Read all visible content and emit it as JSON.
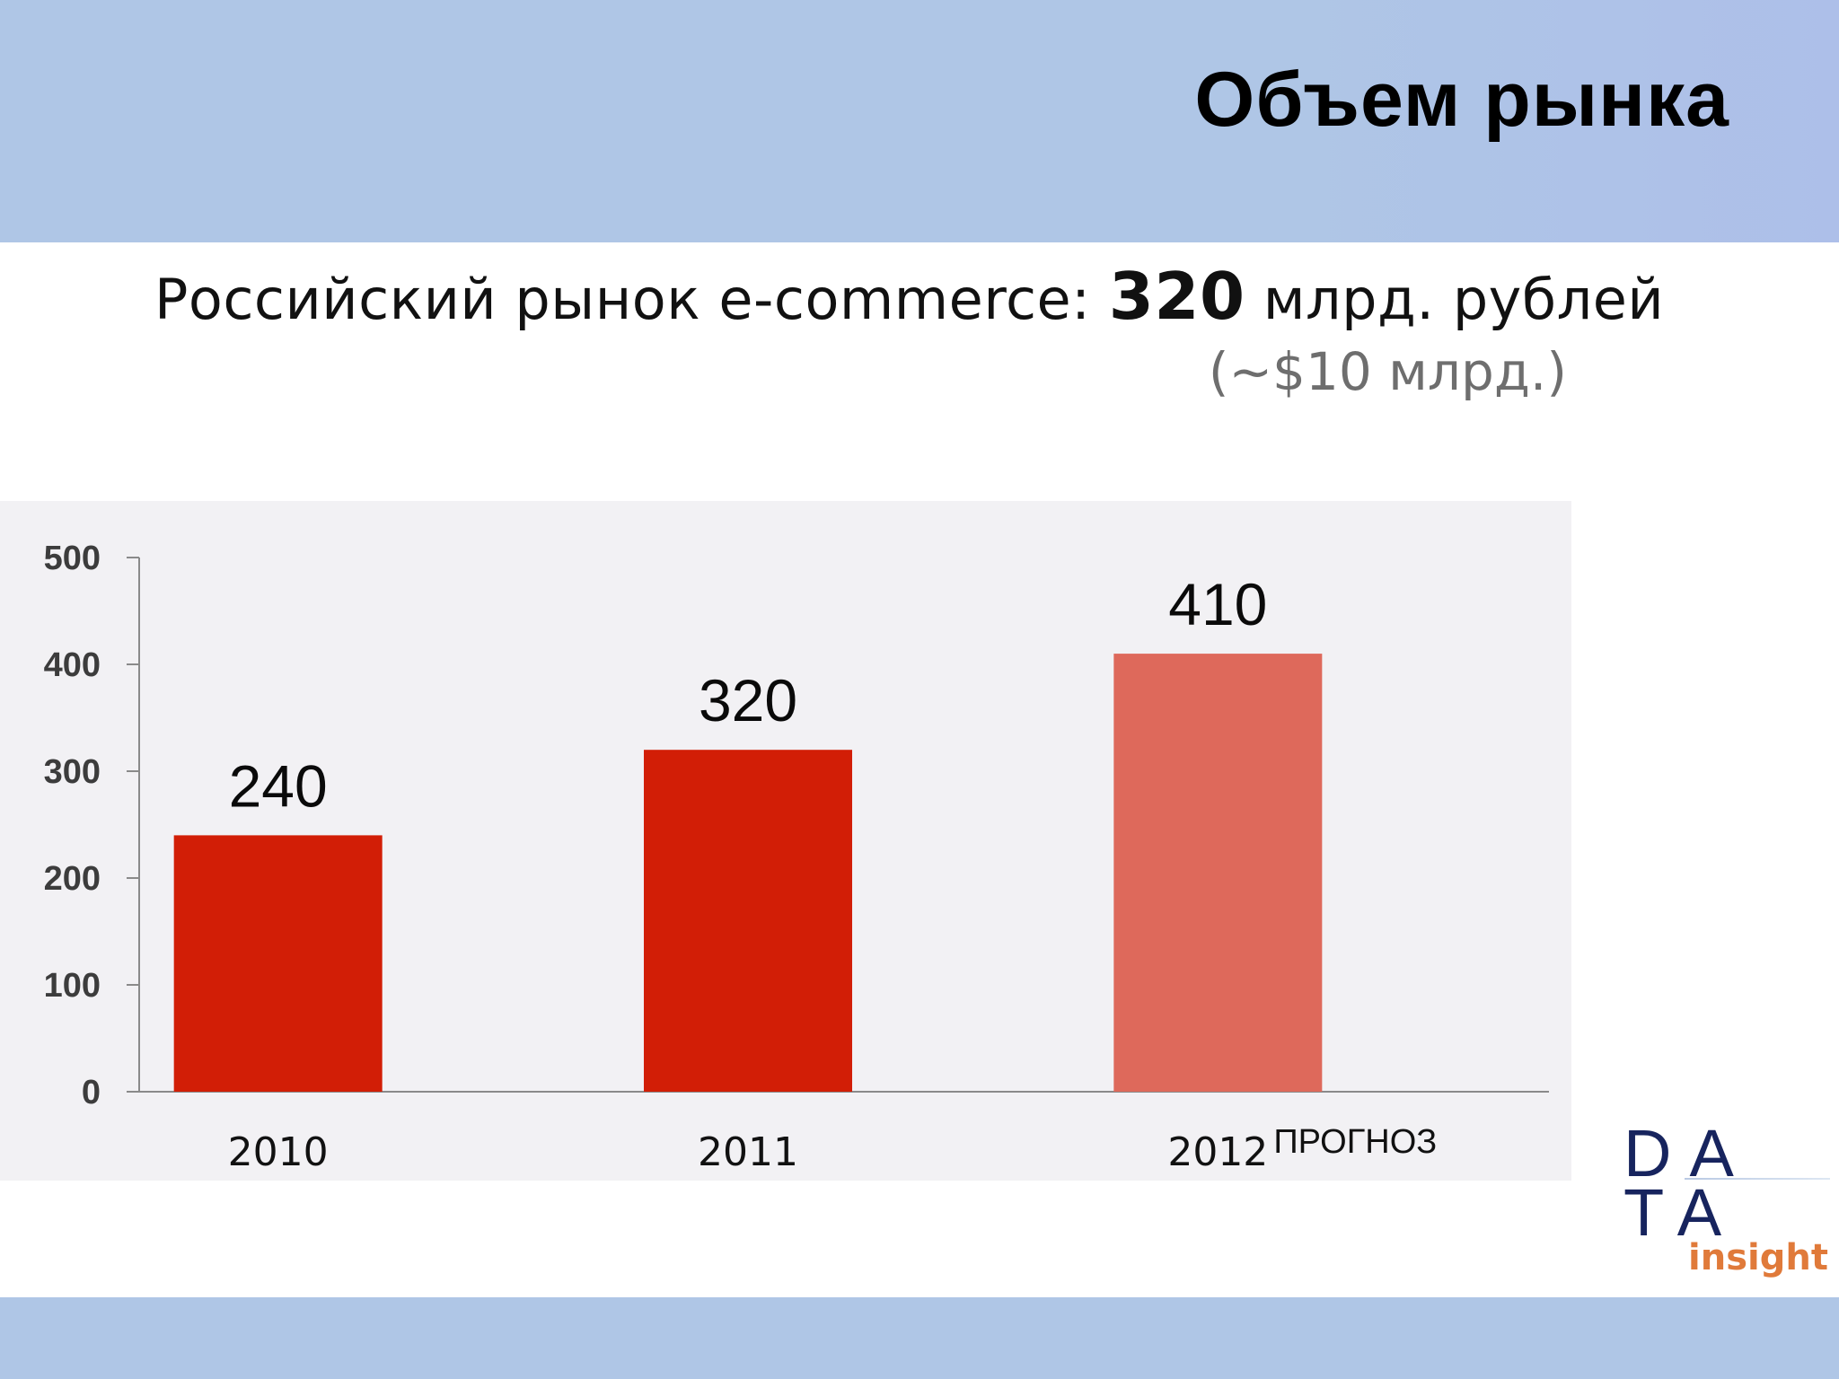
{
  "header": {
    "title": "Объем рынка"
  },
  "headline": {
    "prefix": "Российский рынок e-commerce: ",
    "value": "320",
    "suffix": " млрд. рублей",
    "subline": "(~$10 млрд.)"
  },
  "logo": {
    "line1": "DA",
    "line2": "TA",
    "tagline": "insight"
  },
  "colors": {
    "bar_actual": "#d21e06",
    "bar_forecast": "#de695b",
    "axis": "#8a8a8a"
  },
  "chart_data": {
    "type": "bar",
    "categories": [
      "2010",
      "2011",
      "2012"
    ],
    "values": [
      240,
      320,
      410
    ],
    "data_labels": [
      "240",
      "320",
      "410"
    ],
    "forecast": [
      false,
      false,
      true
    ],
    "annotation": "ПРОГНОЗ",
    "ylim": [
      0,
      500
    ],
    "yticks": [
      0,
      100,
      200,
      300,
      400,
      500
    ],
    "title": "",
    "xlabel": "",
    "ylabel": "",
    "grid": false,
    "legend": "none"
  }
}
